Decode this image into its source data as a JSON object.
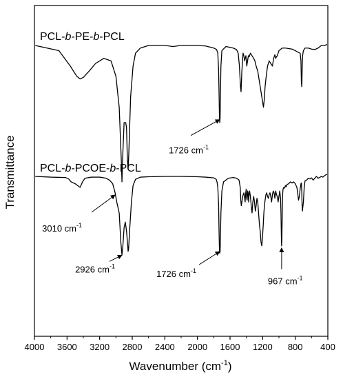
{
  "chart_data": {
    "type": "line",
    "title": "",
    "xlabel": "Wavenumber (cm",
    "xlabel_sup": "-1",
    "xlabel_tail": ")",
    "ylabel": "Transmittance",
    "xlim": [
      4000,
      400
    ],
    "xticks": [
      "4000",
      "3600",
      "3200",
      "2800",
      "2400",
      "2000",
      "1600",
      "1200",
      "800",
      "400"
    ],
    "y_tick_labels": false,
    "series": [
      {
        "name": "PCL-b-PE-b-PCL",
        "label_parts": [
          "PCL-",
          "b",
          "-PE-",
          "b",
          "-PCL"
        ],
        "x": [
          3990,
          3700,
          3560,
          3480,
          3440,
          3400,
          3330,
          3250,
          3150,
          3060,
          3000,
          2960,
          2935,
          2926,
          2918,
          2900,
          2880,
          2870,
          2860,
          2851,
          2842,
          2820,
          2790,
          2760,
          2700,
          2600,
          2400,
          2300,
          2200,
          2100,
          2000,
          1900,
          1800,
          1765,
          1750,
          1740,
          1734,
          1730,
          1726,
          1722,
          1718,
          1712,
          1700,
          1650,
          1560,
          1520,
          1500,
          1485,
          1472,
          1465,
          1455,
          1440,
          1430,
          1420,
          1415,
          1405,
          1395,
          1385,
          1375,
          1365,
          1350,
          1330,
          1310,
          1295,
          1280,
          1260,
          1240,
          1220,
          1200,
          1190,
          1180,
          1170,
          1160,
          1140,
          1120,
          1100,
          1080,
          1065,
          1050,
          1040,
          1030,
          1020,
          1000,
          960,
          920,
          880,
          840,
          800,
          780,
          740,
          730,
          725,
          720,
          718,
          715,
          710,
          700,
          680,
          640,
          600,
          560,
          520,
          480,
          440,
          410
        ],
        "y": [
          3.0,
          2.9,
          2.6,
          2.4,
          2.35,
          2.38,
          2.5,
          2.65,
          2.75,
          2.7,
          2.4,
          1.8,
          0.8,
          0.35,
          0.8,
          1.5,
          1.5,
          1.4,
          0.8,
          0.6,
          0.9,
          2.0,
          2.6,
          2.85,
          2.95,
          3.0,
          3.0,
          2.98,
          3.0,
          3.0,
          3.0,
          2.99,
          2.95,
          2.92,
          2.85,
          2.5,
          2.0,
          1.6,
          1.5,
          1.6,
          2.0,
          2.6,
          2.9,
          2.98,
          2.95,
          2.92,
          2.85,
          2.6,
          2.2,
          2.1,
          2.5,
          2.85,
          2.8,
          2.7,
          2.75,
          2.8,
          2.6,
          2.7,
          2.8,
          2.78,
          2.85,
          2.8,
          2.75,
          2.7,
          2.6,
          2.5,
          2.3,
          2.1,
          1.9,
          1.8,
          1.95,
          2.2,
          2.35,
          2.6,
          2.7,
          2.65,
          2.6,
          2.75,
          2.82,
          2.75,
          2.78,
          2.8,
          2.9,
          2.95,
          2.95,
          2.94,
          2.93,
          2.9,
          2.88,
          2.85,
          2.7,
          2.3,
          2.2,
          2.3,
          2.55,
          2.8,
          2.9,
          2.95,
          2.95,
          2.93,
          2.92,
          2.95,
          3.0,
          3.0,
          3.02
        ]
      },
      {
        "name": "PCL-b-PCOE-b-PCL",
        "label_parts": [
          "PCL-",
          "b",
          "-PCOE-",
          "b",
          "-PCL"
        ],
        "x": [
          3990,
          3800,
          3620,
          3580,
          3550,
          3500,
          3470,
          3440,
          3410,
          3380,
          3300,
          3200,
          3120,
          3080,
          3040,
          3010,
          2990,
          2960,
          2940,
          2926,
          2915,
          2900,
          2885,
          2870,
          2855,
          2851,
          2845,
          2830,
          2810,
          2790,
          2760,
          2700,
          2600,
          2400,
          2300,
          2200,
          2000,
          1900,
          1800,
          1770,
          1760,
          1750,
          1740,
          1735,
          1730,
          1726,
          1722,
          1718,
          1712,
          1700,
          1680,
          1620,
          1560,
          1520,
          1490,
          1475,
          1468,
          1462,
          1455,
          1445,
          1438,
          1430,
          1420,
          1415,
          1410,
          1402,
          1396,
          1390,
          1384,
          1378,
          1372,
          1366,
          1360,
          1350,
          1340,
          1330,
          1320,
          1310,
          1300,
          1290,
          1280,
          1270,
          1260,
          1250,
          1240,
          1230,
          1220,
          1210,
          1200,
          1192,
          1185,
          1178,
          1170,
          1160,
          1150,
          1140,
          1130,
          1120,
          1110,
          1100,
          1090,
          1080,
          1070,
          1060,
          1050,
          1040,
          1030,
          1020,
          1010,
          1000,
          990,
          980,
          975,
          970,
          967,
          964,
          960,
          955,
          950,
          940,
          930,
          920,
          910,
          900,
          880,
          860,
          840,
          820,
          800,
          790,
          780,
          770,
          760,
          750,
          740,
          730,
          725,
          720,
          716,
          712,
          700,
          690,
          680,
          660,
          640,
          620,
          600,
          580,
          560,
          540,
          520,
          500,
          480,
          460,
          440,
          420,
          410
        ],
        "y": [
          3.0,
          2.98,
          2.97,
          2.93,
          2.85,
          2.8,
          2.75,
          2.7,
          2.85,
          2.95,
          2.98,
          2.98,
          2.95,
          2.9,
          2.8,
          2.55,
          2.3,
          2.0,
          1.2,
          0.85,
          1.1,
          1.6,
          1.75,
          1.5,
          1.1,
          0.95,
          1.0,
          1.6,
          2.3,
          2.75,
          2.92,
          2.98,
          2.99,
          3.0,
          3.0,
          3.0,
          2.99,
          2.98,
          2.96,
          2.92,
          2.85,
          2.7,
          2.2,
          1.5,
          1.0,
          0.9,
          0.95,
          1.3,
          2.0,
          2.6,
          2.85,
          2.95,
          2.97,
          2.95,
          2.9,
          2.7,
          2.35,
          2.2,
          2.3,
          2.45,
          2.5,
          2.55,
          2.4,
          2.3,
          2.5,
          2.65,
          2.4,
          2.35,
          2.6,
          2.55,
          2.3,
          2.5,
          2.6,
          2.45,
          2.2,
          2.0,
          2.3,
          2.45,
          2.3,
          2.05,
          2.2,
          2.4,
          2.3,
          2.0,
          1.7,
          1.5,
          1.2,
          1.1,
          1.4,
          1.7,
          2.0,
          2.2,
          2.35,
          2.5,
          2.55,
          2.45,
          2.4,
          2.5,
          2.55,
          2.45,
          2.3,
          2.5,
          2.6,
          2.55,
          2.4,
          2.6,
          2.5,
          2.45,
          2.3,
          2.45,
          2.6,
          2.4,
          2.0,
          1.3,
          1.1,
          1.3,
          1.9,
          2.5,
          2.65,
          2.7,
          2.68,
          2.75,
          2.72,
          2.78,
          2.8,
          2.85,
          2.82,
          2.85,
          2.8,
          2.75,
          2.7,
          2.55,
          2.35,
          2.45,
          2.65,
          2.8,
          2.82,
          2.6,
          2.2,
          2.05,
          2.3,
          2.7,
          2.88,
          2.9,
          2.95,
          2.93,
          2.96,
          2.9,
          2.95,
          3.0,
          2.95,
          2.97,
          3.0,
          2.98,
          3.02,
          3.05,
          3.06
        ]
      }
    ],
    "annotations": [
      {
        "text": "1726 cm",
        "sup": "-1",
        "series": 0,
        "x": 1726,
        "y": 1.6
      },
      {
        "text": "3010 cm",
        "sup": "-1",
        "series": 1,
        "x": 3010,
        "y": 2.55
      },
      {
        "text": "2926 cm",
        "sup": "-1",
        "series": 1,
        "x": 2926,
        "y": 0.9
      },
      {
        "text": "1726 cm",
        "sup": "-1",
        "series": 1,
        "x": 1726,
        "y": 1.0
      },
      {
        "text": "967 cm",
        "sup": "-1",
        "series": 1,
        "x": 967,
        "y": 1.1
      }
    ]
  }
}
